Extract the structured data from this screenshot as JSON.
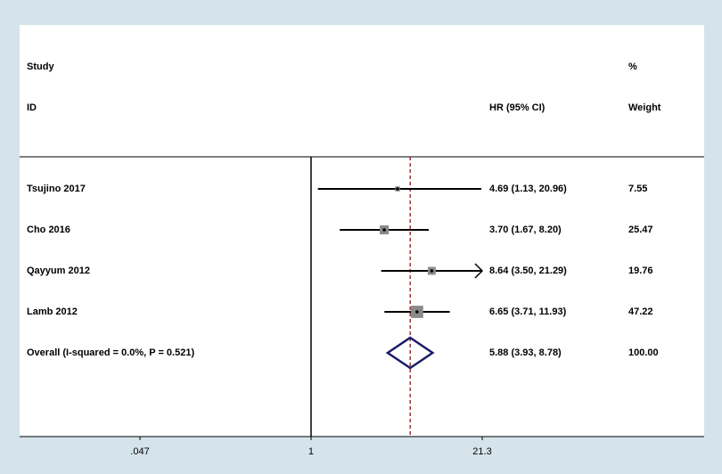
{
  "chart_data": {
    "type": "forest",
    "headers": {
      "study_top": "Study",
      "study_bottom": "ID",
      "effect": "HR (95% CI)",
      "weight_top": "%",
      "weight_bottom": "Weight"
    },
    "studies": [
      {
        "name": "Tsujino 2017",
        "hr": 4.69,
        "lower": 1.13,
        "upper": 20.96,
        "label": "4.69 (1.13, 20.96)",
        "weight": 7.55
      },
      {
        "name": "Cho 2016",
        "hr": 3.7,
        "lower": 1.67,
        "upper": 8.2,
        "label": "3.70 (1.67, 8.20)",
        "weight": 25.47
      },
      {
        "name": "Qayyum 2012",
        "hr": 8.64,
        "lower": 3.5,
        "upper": 21.29,
        "label": "8.64 (3.50, 21.29)",
        "weight": 19.76
      },
      {
        "name": "Lamb 2012",
        "hr": 6.65,
        "lower": 3.71,
        "upper": 11.93,
        "label": "6.65 (3.71, 11.93)",
        "weight": 47.22
      }
    ],
    "overall": {
      "name": "Overall  (I-squared = 0.0%, P = 0.521)",
      "hr": 5.88,
      "lower": 3.93,
      "upper": 8.78,
      "label": "5.88 (3.93, 8.78)",
      "weight": 100,
      "weight_label": "100.00"
    },
    "xlim": [
      0.047,
      21.3
    ],
    "xticks": [
      {
        "value": 0.047,
        "label": ".047"
      },
      1,
      21.3
    ],
    "log_x": true,
    "reference_line": 1,
    "marker_color": "#8a8a8a",
    "diamond_color": "#1c1c6b",
    "overall_line_color": "#8b1a1a"
  }
}
